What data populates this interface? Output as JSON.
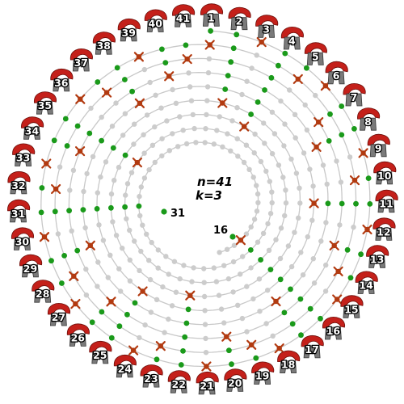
{
  "figure": {
    "n_label": "n=41",
    "k_label": "k=3",
    "last_one_label": "31",
    "second_last_label": "16"
  },
  "puzzle": {
    "n": 41,
    "k": 3,
    "eliminated_order": [
      3,
      6,
      9,
      12,
      15,
      18,
      21,
      24,
      27,
      30,
      33,
      36,
      39,
      1,
      5,
      10,
      14,
      19,
      23,
      28,
      32,
      37,
      41,
      7,
      13,
      20,
      26,
      34,
      40,
      8,
      17,
      29,
      38,
      11,
      25,
      2,
      22,
      4,
      35,
      16,
      31
    ]
  },
  "helmets": [
    "1",
    "2",
    "3",
    "4",
    "5",
    "6",
    "7",
    "8",
    "9",
    "10",
    "11",
    "12",
    "13",
    "14",
    "15",
    "16",
    "17",
    "18",
    "19",
    "20",
    "21",
    "22",
    "23",
    "24",
    "25",
    "26",
    "27",
    "28",
    "29",
    "30",
    "31",
    "32",
    "33",
    "34",
    "35",
    "36",
    "37",
    "38",
    "39",
    "40",
    "41"
  ],
  "colors": {
    "plume": "#c4201a",
    "helmet": "#7a7a7a",
    "survivor": "#1a9a1a",
    "killed": "#b23a10",
    "spiral": "#c8c8c8",
    "empty_dot": "#cccccc"
  }
}
